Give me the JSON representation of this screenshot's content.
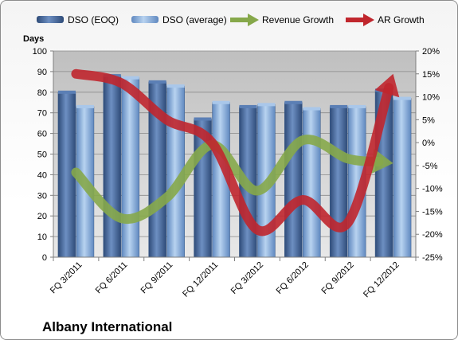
{
  "chart_data": {
    "type": "bar",
    "company": "Albany International",
    "y_left_unit": "Days",
    "categories": [
      "FQ 3/2011",
      "FQ 6/2011",
      "FQ 9/2011",
      "FQ 12/2011",
      "FQ 3/2012",
      "FQ 6/2012",
      "FQ 9/2012",
      "FQ 12/2012"
    ],
    "ylim_left": [
      0,
      100
    ],
    "yticks_left": [
      "0",
      "10",
      "20",
      "30",
      "40",
      "50",
      "60",
      "70",
      "80",
      "90",
      "100"
    ],
    "ylim_right": [
      -25,
      20
    ],
    "yticks_right": [
      "-25%",
      "-20%",
      "-15%",
      "-10%",
      "-5%",
      "0%",
      "5%",
      "10%",
      "15%",
      "20%"
    ],
    "grid": true,
    "legend_position": "top",
    "series": [
      {
        "name": "DSO (EOQ)",
        "kind": "bar",
        "axis": "left",
        "color": "#4a6fa5",
        "values": [
          80,
          88,
          85,
          67,
          73,
          75,
          73,
          81
        ]
      },
      {
        "name": "DSO (average)",
        "kind": "bar",
        "axis": "left",
        "color": "#8fb3e0",
        "values": [
          73,
          87,
          83,
          75,
          74,
          72,
          73,
          77
        ]
      },
      {
        "name": "Revenue Growth",
        "kind": "line-arrow",
        "axis": "right",
        "color": "#86a84a",
        "values": [
          -6.5,
          -16.5,
          -12,
          -0.5,
          -10.5,
          0.5,
          -3.5,
          -4.5
        ]
      },
      {
        "name": "AR Growth",
        "kind": "line-arrow",
        "axis": "right",
        "color": "#c0262d",
        "values": [
          15,
          13,
          5,
          0,
          -19,
          -12.5,
          -17.5,
          15
        ]
      }
    ]
  }
}
